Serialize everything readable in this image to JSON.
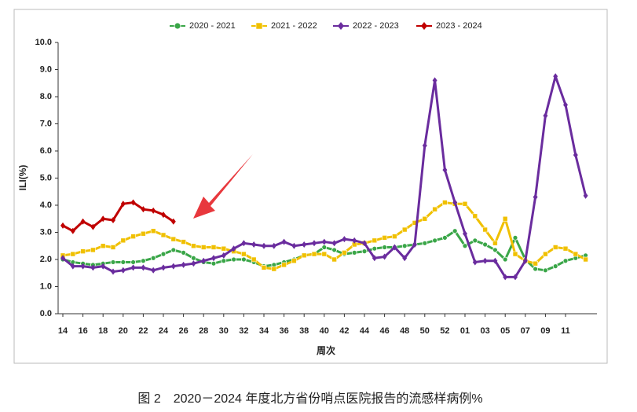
{
  "chart_data": {
    "type": "line",
    "caption": "图 2　2020－2024 年度北方省份哨点医院报告的流感样病例%",
    "ylabel": "ILI(%)",
    "xlabel": "周次",
    "categories": [
      "14",
      null,
      "16",
      null,
      "18",
      null,
      "20",
      null,
      "22",
      null,
      "24",
      null,
      "26",
      null,
      "28",
      null,
      "30",
      null,
      "32",
      null,
      "34",
      null,
      "36",
      null,
      "38",
      null,
      "40",
      null,
      "42",
      null,
      "44",
      null,
      "46",
      null,
      "48",
      null,
      "50",
      null,
      "52",
      null,
      "01",
      null,
      "03",
      null,
      "05",
      null,
      "07",
      null,
      "09",
      null,
      "11",
      null,
      null
    ],
    "ylim": [
      0,
      10
    ],
    "yticks": [
      {
        "value": 0,
        "label": "0.0"
      },
      {
        "value": 1,
        "label": "1.0"
      },
      {
        "value": 2,
        "label": "2.0"
      },
      {
        "value": 3,
        "label": "3.0"
      },
      {
        "value": 4,
        "label": "4.0"
      },
      {
        "value": 5,
        "label": "5.0"
      },
      {
        "value": 6,
        "label": "6.0"
      },
      {
        "value": 7,
        "label": "7.0"
      },
      {
        "value": 8,
        "label": "8.0"
      },
      {
        "value": 9,
        "label": "9.0"
      },
      {
        "value": 10,
        "label": "10.0"
      }
    ],
    "legend": "top",
    "series": [
      {
        "name": "2020 - 2021",
        "color": "#3aa648",
        "marker": "circle",
        "values": [
          2.0,
          1.9,
          1.85,
          1.8,
          1.85,
          1.9,
          1.9,
          1.9,
          1.95,
          2.05,
          2.2,
          2.35,
          2.25,
          2.05,
          1.9,
          1.85,
          1.95,
          2.0,
          2.0,
          1.9,
          1.75,
          1.8,
          1.9,
          2.0,
          2.15,
          2.2,
          2.45,
          2.35,
          2.2,
          2.25,
          2.3,
          2.4,
          2.45,
          2.45,
          2.5,
          2.55,
          2.6,
          2.7,
          2.8,
          3.05,
          2.5,
          2.7,
          2.55,
          2.35,
          2.0,
          2.8,
          2.0,
          1.65,
          1.6,
          1.75,
          1.95,
          2.05,
          2.15
        ]
      },
      {
        "name": "2021 - 2022",
        "color": "#f0c000",
        "marker": "square",
        "values": [
          2.15,
          2.2,
          2.3,
          2.35,
          2.5,
          2.45,
          2.7,
          2.85,
          2.95,
          3.05,
          2.9,
          2.75,
          2.65,
          2.5,
          2.45,
          2.45,
          2.4,
          2.3,
          2.2,
          2.0,
          1.7,
          1.65,
          1.8,
          1.95,
          2.15,
          2.2,
          2.2,
          2.0,
          2.25,
          2.55,
          2.6,
          2.7,
          2.8,
          2.85,
          3.1,
          3.35,
          3.5,
          3.85,
          4.1,
          4.05,
          4.05,
          3.6,
          3.1,
          2.6,
          3.5,
          2.2,
          1.95,
          1.85,
          2.2,
          2.45,
          2.4,
          2.2,
          2.0
        ]
      },
      {
        "name": "2022 - 2023",
        "color": "#6a2c9e",
        "marker": "diamond",
        "values": [
          2.05,
          1.75,
          1.75,
          1.7,
          1.75,
          1.55,
          1.6,
          1.7,
          1.7,
          1.6,
          1.7,
          1.75,
          1.8,
          1.85,
          1.95,
          2.05,
          2.15,
          2.4,
          2.6,
          2.55,
          2.5,
          2.5,
          2.65,
          2.5,
          2.55,
          2.6,
          2.65,
          2.6,
          2.75,
          2.7,
          2.6,
          2.05,
          2.1,
          2.45,
          2.05,
          2.55,
          6.2,
          8.6,
          5.3,
          4.1,
          2.95,
          1.9,
          1.95,
          1.95,
          1.35,
          1.35,
          1.95,
          4.3,
          7.3,
          8.75,
          7.7,
          5.85,
          4.35
        ]
      },
      {
        "name": "2023 - 2024",
        "color": "#c00000",
        "marker": "diamond",
        "values": [
          3.25,
          3.05,
          3.4,
          3.2,
          3.5,
          3.45,
          4.05,
          4.1,
          3.85,
          3.8,
          3.65,
          3.4,
          null,
          null,
          null,
          null,
          null,
          null,
          null,
          null,
          null,
          null,
          null,
          null,
          null,
          null,
          null,
          null,
          null,
          null,
          null,
          null,
          null,
          null,
          null,
          null,
          null,
          null,
          null,
          null,
          null,
          null,
          null,
          null,
          null,
          null,
          null,
          null,
          null,
          null,
          null,
          null,
          null
        ]
      }
    ]
  }
}
